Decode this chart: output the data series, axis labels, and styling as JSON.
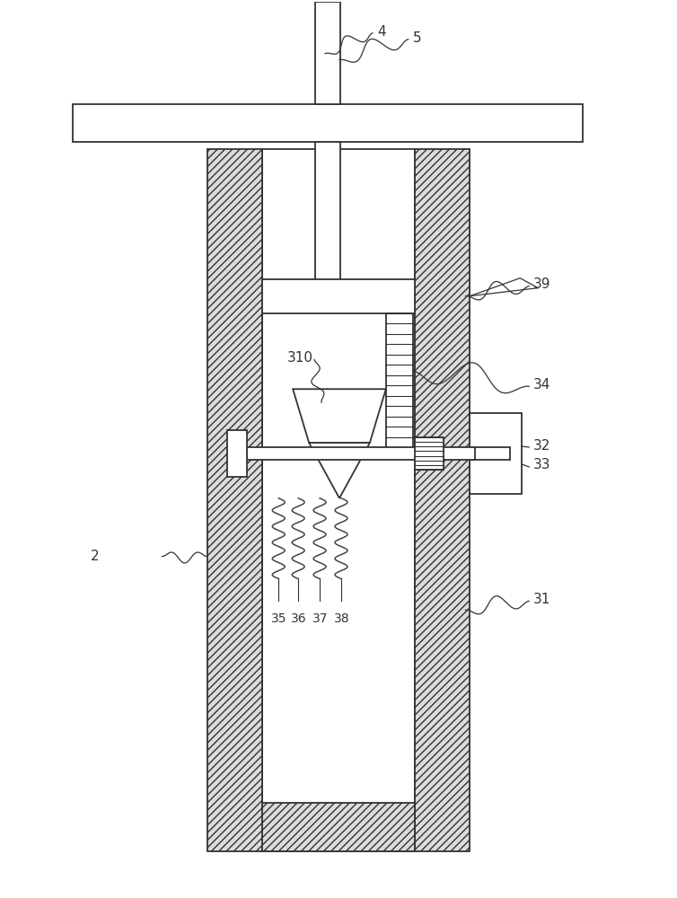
{
  "bg_color": "#ffffff",
  "line_color": "#333333",
  "label_color": "#333333",
  "label_fontsize": 11,
  "hatch_fc": "#dcdcdc",
  "fig_w": 7.54,
  "fig_h": 10.0,
  "dpi": 100
}
